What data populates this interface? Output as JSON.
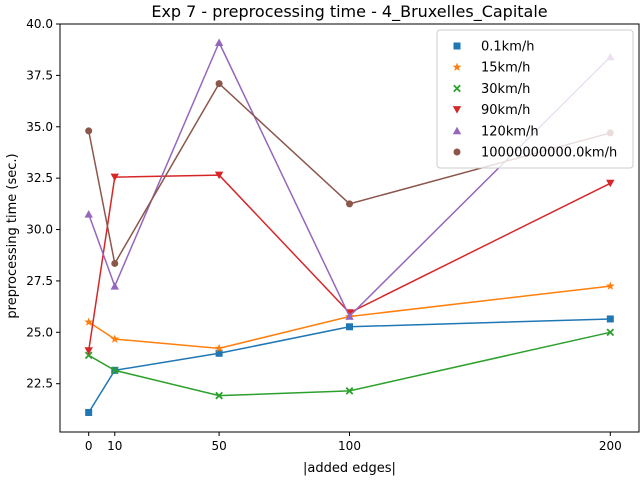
{
  "chart_data": {
    "type": "line",
    "title": "Exp 7 - preprocessing time - 4_Bruxelles_Capitale",
    "xlabel": "|added edges|",
    "ylabel": "preprocessing time (sec.)",
    "x": [
      0,
      10,
      50,
      100,
      200
    ],
    "xticks": [
      0,
      10,
      50,
      100,
      200
    ],
    "xtick_labels": [
      "0",
      "10",
      "50",
      "100",
      "200"
    ],
    "xlim": [
      -11,
      211
    ],
    "ylim": [
      20.15,
      40.0
    ],
    "yticks": [
      22.5,
      25.0,
      27.5,
      30.0,
      32.5,
      35.0,
      37.5,
      40.0
    ],
    "ytick_labels": [
      "22.5",
      "25.0",
      "27.5",
      "30.0",
      "32.5",
      "35.0",
      "37.5",
      "40.0"
    ],
    "grid": false,
    "legend_position": "top-right",
    "series": [
      {
        "name": "0.1km/h",
        "values": [
          21.1,
          23.15,
          23.98,
          25.27,
          25.65
        ],
        "color": "#1f77b4",
        "marker": "square"
      },
      {
        "name": "15km/h",
        "values": [
          25.5,
          24.67,
          24.22,
          25.77,
          27.25
        ],
        "color": "#ff7f0e",
        "marker": "star"
      },
      {
        "name": "30km/h",
        "values": [
          23.88,
          23.15,
          21.92,
          22.15,
          25.0
        ],
        "color": "#2ca02c",
        "marker": "x"
      },
      {
        "name": "90km/h",
        "values": [
          24.1,
          32.55,
          32.65,
          25.95,
          32.25
        ],
        "color": "#d62728",
        "marker": "triangle-down"
      },
      {
        "name": "120km/h",
        "values": [
          30.75,
          27.25,
          39.1,
          25.78,
          38.4
        ],
        "color": "#9467bd",
        "marker": "triangle-up"
      },
      {
        "name": "10000000000.0km/h",
        "values": [
          34.8,
          28.35,
          37.1,
          31.25,
          34.7
        ],
        "color": "#8c564b",
        "marker": "circle"
      }
    ]
  }
}
